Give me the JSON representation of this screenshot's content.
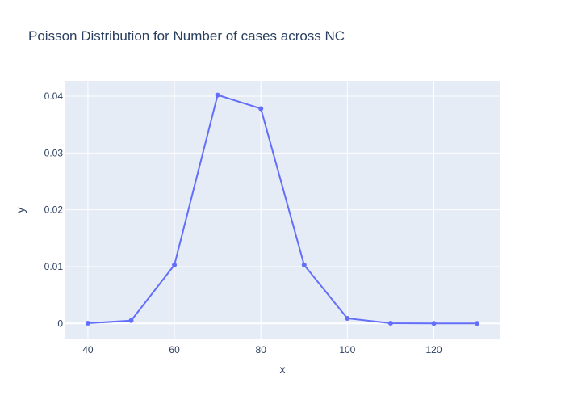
{
  "chart_data": {
    "type": "line",
    "title": "Poisson Distribution for Number of cases across NC",
    "xlabel": "x",
    "ylabel": "y",
    "x": [
      40,
      50,
      60,
      70,
      80,
      90,
      100,
      110,
      120,
      130
    ],
    "series": [
      {
        "values": [
          4e-05,
          0.0005,
          0.0103,
          0.0402,
          0.0378,
          0.0103,
          0.0009,
          4e-05,
          3e-07,
          1e-07
        ]
      }
    ],
    "xlim": [
      34.6,
      135.4
    ],
    "ylim": [
      -0.0028,
      0.0427
    ],
    "x_ticks": [
      {
        "value": 40,
        "label": "40"
      },
      {
        "value": 60,
        "label": "60"
      },
      {
        "value": 80,
        "label": "80"
      },
      {
        "value": 100,
        "label": "100"
      },
      {
        "value": 120,
        "label": "120"
      }
    ],
    "y_ticks": [
      {
        "value": 0,
        "label": "0"
      },
      {
        "value": 0.01,
        "label": "0.01"
      },
      {
        "value": 0.02,
        "label": "0.02"
      },
      {
        "value": 0.03,
        "label": "0.03"
      },
      {
        "value": 0.04,
        "label": "0.04"
      }
    ],
    "grid": true,
    "colors": {
      "line": "#636efa",
      "plot_background": "#e5ecf6",
      "grid": "#ffffff",
      "text": "#2a3f5f"
    }
  }
}
